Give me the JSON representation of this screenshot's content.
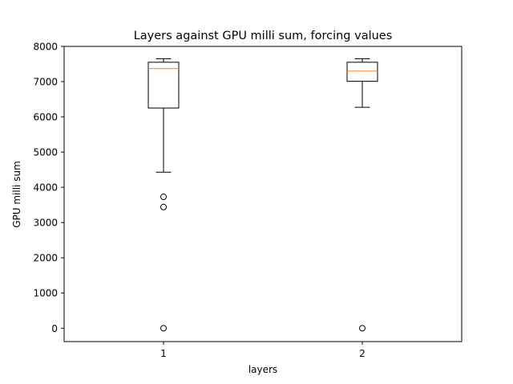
{
  "chart_data": {
    "type": "boxplot",
    "title": "Layers against GPU milli sum, forcing values",
    "xlabel": "layers",
    "ylabel": "GPU milli sum",
    "categories": [
      "1",
      "2"
    ],
    "ylim": [
      -380,
      8000
    ],
    "yticks": [
      0,
      1000,
      2000,
      3000,
      4000,
      5000,
      6000,
      7000,
      8000
    ],
    "grid": false,
    "boxes": [
      {
        "category": "1",
        "whisker_low": 4430,
        "q1": 6250,
        "median": 7370,
        "q3": 7550,
        "whisker_high": 7650,
        "outliers": [
          3730,
          3440,
          0
        ]
      },
      {
        "category": "2",
        "whisker_low": 6270,
        "q1": 7010,
        "median": 7300,
        "q3": 7550,
        "whisker_high": 7650,
        "outliers": [
          0
        ]
      }
    ],
    "colors": {
      "box": "#000000",
      "median": "#ff7f0e",
      "outlier": "#000000"
    }
  }
}
